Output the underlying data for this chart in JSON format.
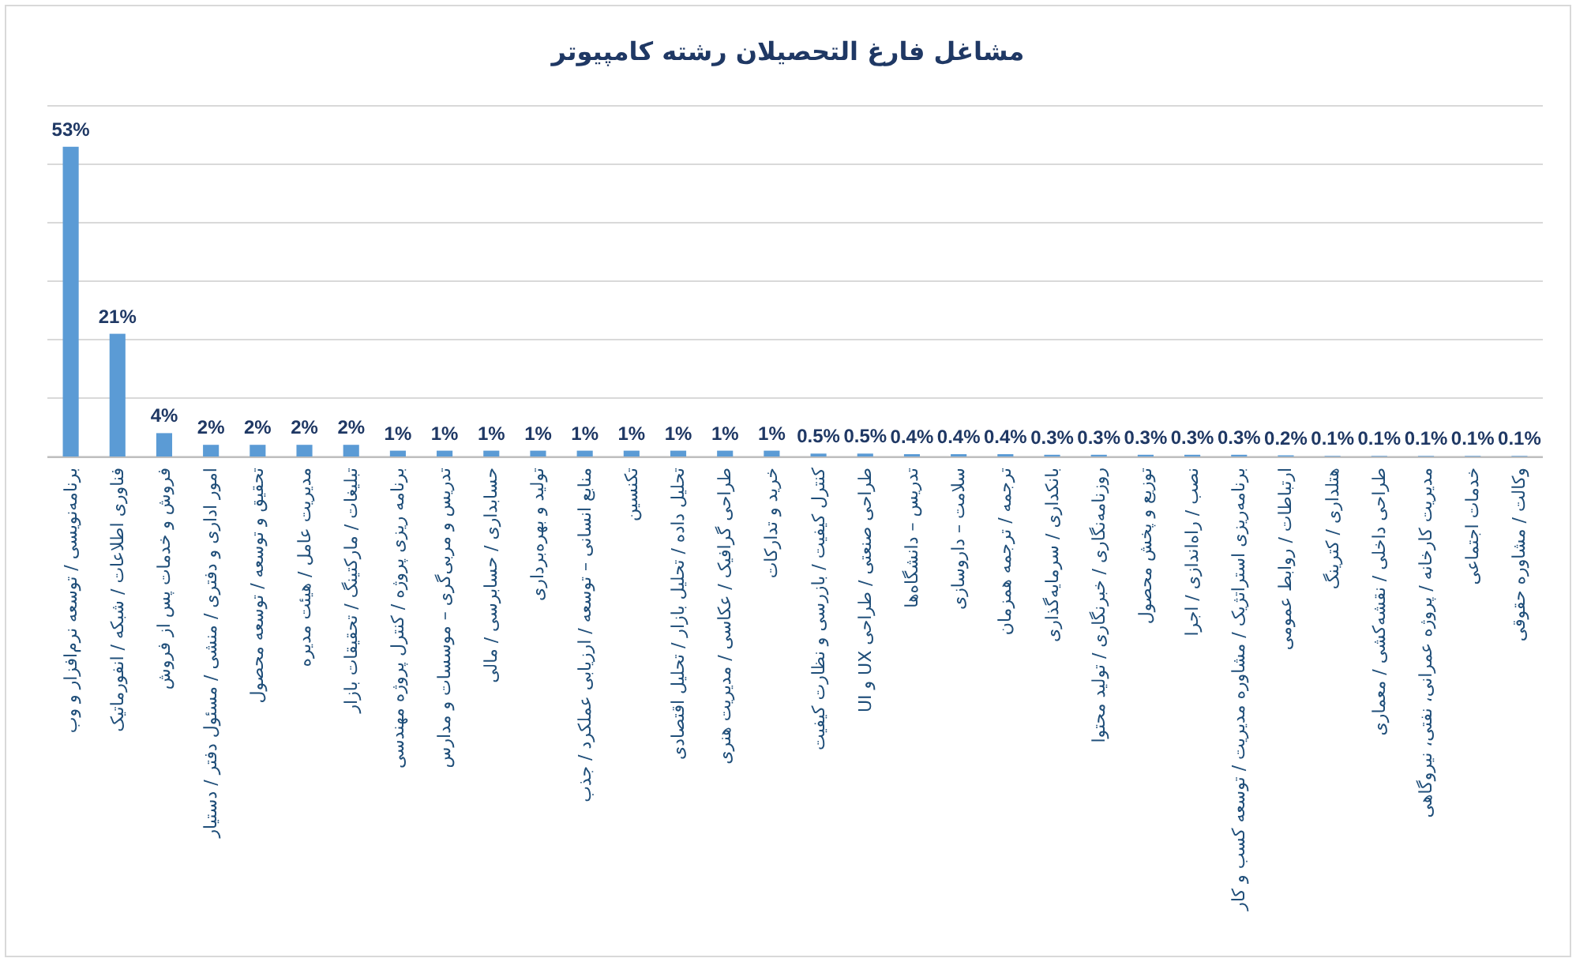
{
  "chart_data": {
    "type": "bar",
    "title": "مشاغل فارغ التحصیلان رشته کامپیوتر",
    "categories": [
      "برنامه‌نویسی / توسعه نرم‌افزار و وب",
      "فناوری اطلاعات / شبکه / انفورماتیک",
      "فروش و خدمات پس از فروش",
      "امور اداری و دفتری / منشی / مسئول دفتر / دستیار",
      "تحقیق و توسعه / توسعه محصول",
      "مدیریت عامل / هیئت مدیره",
      "تبلیغات / مارکتینگ / تحقیقات بازار",
      "برنامه ریزی پروژه / کنترل پروژه مهندسی",
      "تدریس و مربی‌گری – موسسات و مدارس",
      "حسابداری / حسابرسی / مالی",
      "تولید و بهره‌برداری",
      "منابع انسانی – توسعه / ارزیابی عملکرد / جذب",
      "تکنسین",
      "تحلیل داده / تحلیل بازار / تحلیل اقتصادی",
      "طراحی گرافیک / عکاسی / مدیریت هنری",
      "خرید و تدارکات",
      "کنترل کیفیت / بازرسی و نظارت کیفیت",
      "طراحی صنعتی / طراحی UX و UI",
      "تدریس – دانشگاه‌ها",
      "سلامت – داروسازی",
      "ترجمه / ترجمه همزمان",
      "بانکداری / سرمایه‌گذاری",
      "روزنامه‌نگاری / خبرنگاری / تولید محتوا",
      "توزیع و پخش محصول",
      "نصب / راه‌اندازی / اجرا",
      "برنامه‌ریزی استراتژیک / مشاوره مدیریت / توسعه کسب و کار",
      "ارتباطات / روابط عمومی",
      "هتلداری / کترینگ",
      "طراحی داخلی / نقشه‌کشی / معماری",
      "مدیریت کارخانه / پروژه عمرانی، نفتی، نیروگاهی",
      "خدمات اجتماعی",
      "وکالت / مشاوره حقوقی"
    ],
    "values": [
      53,
      21,
      4,
      2,
      2,
      2,
      2,
      1,
      1,
      1,
      1,
      1,
      1,
      1,
      1,
      1,
      0.5,
      0.5,
      0.4,
      0.4,
      0.4,
      0.3,
      0.3,
      0.3,
      0.3,
      0.3,
      0.2,
      0.1,
      0.1,
      0.1,
      0.1,
      0.1
    ],
    "value_labels": [
      "53%",
      "21%",
      "4%",
      "2%",
      "2%",
      "2%",
      "2%",
      "1%",
      "1%",
      "1%",
      "1%",
      "1%",
      "1%",
      "1%",
      "1%",
      "1%",
      "0.5%",
      "0.5%",
      "0.4%",
      "0.4%",
      "0.4%",
      "0.3%",
      "0.3%",
      "0.3%",
      "0.3%",
      "0.3%",
      "0.2%",
      "0.1%",
      "0.1%",
      "0.1%",
      "0.1%",
      "0.1%"
    ],
    "color": "#5b9bd5",
    "ylim": [
      0,
      60
    ],
    "yticks": [
      {
        "value": 0,
        "label": null
      },
      {
        "value": 10,
        "label": null
      },
      {
        "value": 20,
        "label": null
      },
      {
        "value": 30,
        "label": null
      },
      {
        "value": 40,
        "label": null
      },
      {
        "value": 50,
        "label": null
      },
      {
        "value": 60,
        "label": null
      }
    ],
    "grid": "y",
    "tick_labels": "x"
  }
}
